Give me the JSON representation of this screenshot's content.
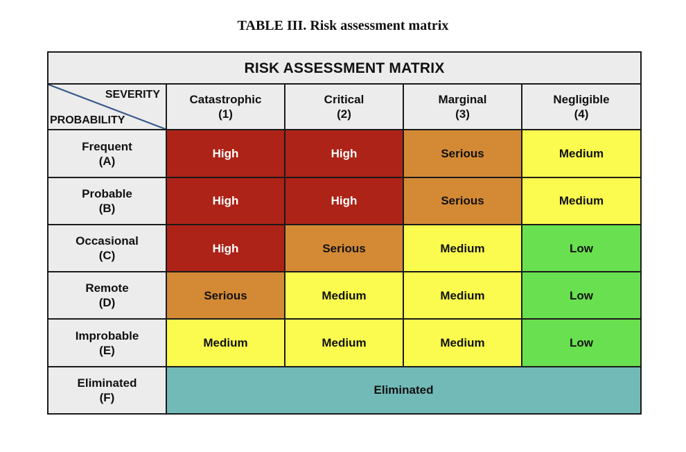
{
  "caption": "TABLE III.  Risk assessment matrix",
  "matrix": {
    "title": "RISK ASSESSMENT MATRIX",
    "corner": {
      "severity": "SEVERITY",
      "probability": "PROBABILITY"
    },
    "columns": [
      {
        "name": "Catastrophic",
        "code": "(1)"
      },
      {
        "name": "Critical",
        "code": "(2)"
      },
      {
        "name": "Marginal",
        "code": "(3)"
      },
      {
        "name": "Negligible",
        "code": "(4)"
      }
    ],
    "rows": [
      {
        "name": "Frequent",
        "code": "(A)",
        "cells": [
          "High",
          "High",
          "Serious",
          "Medium"
        ]
      },
      {
        "name": "Probable",
        "code": "(B)",
        "cells": [
          "High",
          "High",
          "Serious",
          "Medium"
        ]
      },
      {
        "name": "Occasional",
        "code": "(C)",
        "cells": [
          "High",
          "Serious",
          "Medium",
          "Low"
        ]
      },
      {
        "name": "Remote",
        "code": "(D)",
        "cells": [
          "Serious",
          "Medium",
          "Medium",
          "Low"
        ]
      },
      {
        "name": "Improbable",
        "code": "(E)",
        "cells": [
          "Medium",
          "Medium",
          "Medium",
          "Low"
        ]
      }
    ],
    "eliminated_row": {
      "name": "Eliminated",
      "code": "(F)",
      "value": "Eliminated"
    },
    "level_colors": {
      "High": "#ad2318",
      "Serious": "#d48a35",
      "Medium": "#fbfb4f",
      "Low": "#69e04f",
      "Eliminated": "#71bab8"
    }
  }
}
